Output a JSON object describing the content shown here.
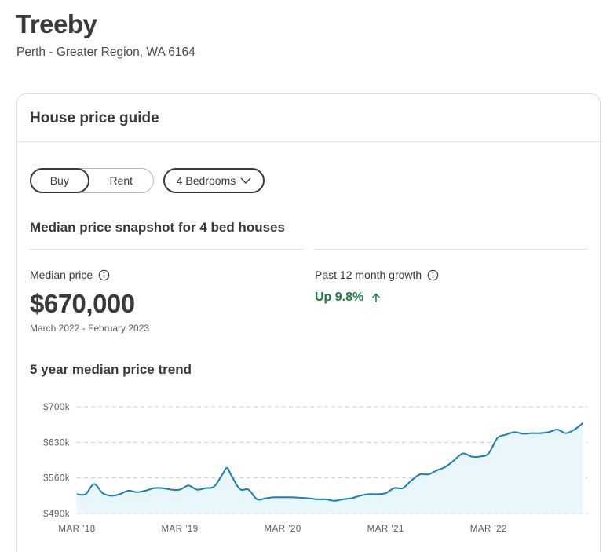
{
  "header": {
    "suburb": "Treeby",
    "region": "Perth - Greater Region, WA 6164"
  },
  "card": {
    "title": "House price guide",
    "toggle": {
      "buy": "Buy",
      "rent": "Rent",
      "selected": "Buy"
    },
    "bedrooms_dropdown": {
      "value": "4 Bedrooms",
      "icon": "chevron-down-icon"
    },
    "snapshot_title": "Median price snapshot for 4 bed houses",
    "median": {
      "label": "Median price",
      "value": "$670,000",
      "period": "March 2022 - February 2023",
      "icon": "info-icon"
    },
    "growth": {
      "label": "Past 12 month growth",
      "value": "Up 9.8%",
      "icon": "arrow-up-icon",
      "color": "#1d7a43"
    },
    "trend_title": "5 year median price trend"
  },
  "chart_data": {
    "type": "area",
    "title": "5 year median price trend",
    "y_ticks": [
      "$700k",
      "$630k",
      "$560k",
      "$490k"
    ],
    "y_tick_values": [
      700,
      630,
      560,
      490
    ],
    "x_ticks": [
      "MAR '18",
      "MAR '19",
      "MAR '20",
      "MAR '21",
      "MAR '22"
    ],
    "x_tick_values": [
      0,
      12,
      24,
      36,
      48
    ],
    "ylim": [
      490,
      700
    ],
    "grid": true,
    "line_color": "#1a7fb0",
    "fill_color": "#e9f6fb",
    "series": [
      {
        "x": [
          0,
          1,
          2,
          3,
          4,
          5,
          6,
          7,
          8,
          9,
          10,
          11,
          12,
          13,
          14,
          15,
          16,
          17,
          17.5,
          18,
          19,
          20,
          21,
          22,
          23,
          24,
          25,
          26,
          27,
          28,
          29,
          30,
          31,
          32,
          33,
          34,
          35,
          36,
          37,
          38,
          39,
          40,
          41,
          42,
          43,
          44,
          45,
          46,
          47,
          48,
          49,
          50,
          51,
          52,
          53,
          54,
          55,
          56,
          57,
          58,
          59
        ],
        "y": [
          528,
          528,
          548,
          530,
          525,
          528,
          535,
          532,
          535,
          540,
          540,
          537,
          537,
          545,
          537,
          540,
          543,
          568,
          580,
          565,
          538,
          537,
          518,
          520,
          522,
          522,
          522,
          521,
          520,
          518,
          518,
          515,
          518,
          520,
          525,
          528,
          528,
          530,
          540,
          540,
          555,
          567,
          567,
          575,
          582,
          595,
          608,
          602,
          602,
          608,
          638,
          645,
          650,
          647,
          648,
          648,
          650,
          655,
          648,
          655,
          668
        ]
      }
    ]
  }
}
